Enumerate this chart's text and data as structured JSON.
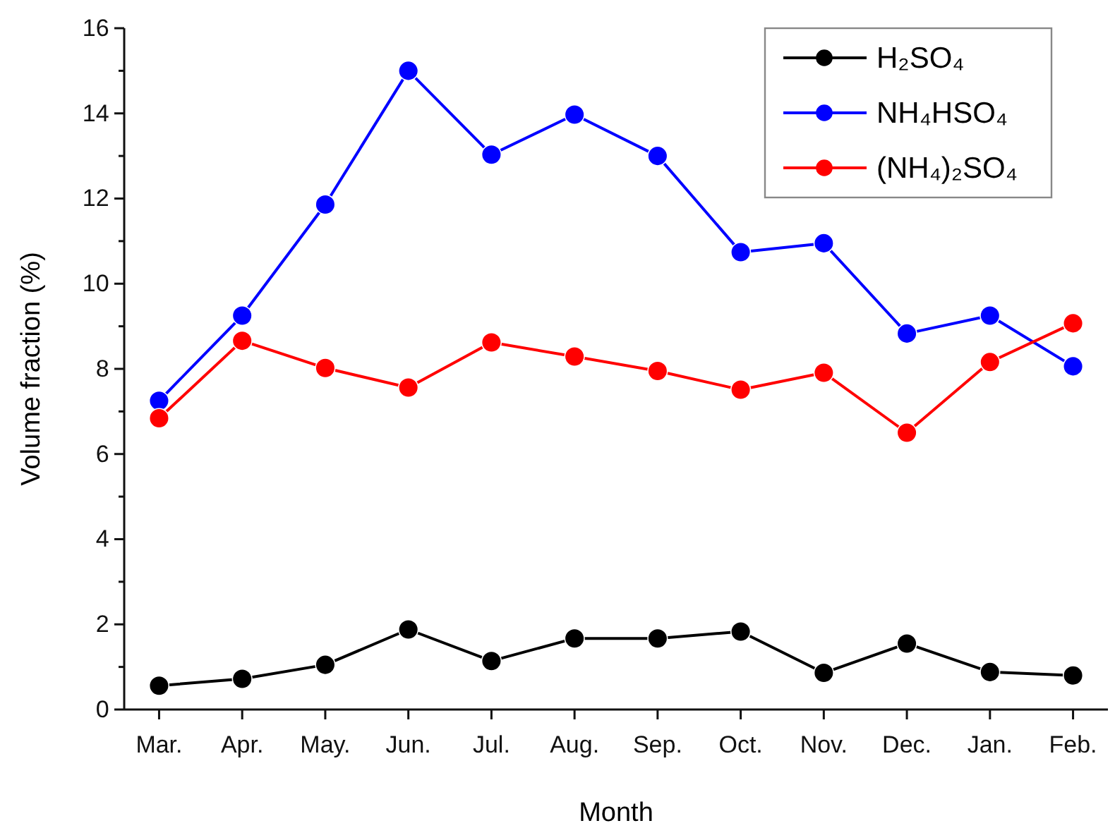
{
  "chart_data": {
    "type": "line",
    "xlabel": "Month",
    "ylabel": "Volume fraction (%)",
    "categories": [
      "Mar.",
      "Apr.",
      "May.",
      "Jun.",
      "Jul.",
      "Aug.",
      "Sep.",
      "Oct.",
      "Nov.",
      "Dec.",
      "Jan.",
      "Feb."
    ],
    "series": [
      {
        "name": "H₂SO₄",
        "color": "#000000",
        "values": [
          0.56,
          0.72,
          1.05,
          1.88,
          1.14,
          1.67,
          1.67,
          1.83,
          0.86,
          1.55,
          0.88,
          0.8
        ]
      },
      {
        "name": "NH₄HSO₄",
        "color": "#0000ff",
        "values": [
          7.25,
          9.25,
          11.86,
          15.0,
          13.03,
          13.97,
          13.0,
          10.74,
          10.95,
          8.83,
          9.25,
          8.06
        ]
      },
      {
        "name": "(NH₄)₂SO₄",
        "color": "#ff0000",
        "values": [
          6.84,
          8.66,
          8.02,
          7.56,
          8.62,
          8.29,
          7.95,
          7.51,
          7.91,
          6.5,
          8.16,
          9.07
        ]
      }
    ],
    "ylim": [
      0,
      16
    ],
    "yticks": [
      0,
      {
        "value": 1,
        "label": null
      },
      2,
      {
        "value": 3,
        "label": null
      },
      4,
      {
        "value": 5,
        "label": null
      },
      6,
      {
        "value": 7,
        "label": null
      },
      8,
      {
        "value": 9,
        "label": null
      },
      10,
      {
        "value": 11,
        "label": null
      },
      12,
      {
        "value": 13,
        "label": null
      },
      14,
      {
        "value": 15,
        "label": null
      },
      16
    ],
    "marker": "circle",
    "line_style": "solid",
    "legend": "top right",
    "grid": false
  }
}
